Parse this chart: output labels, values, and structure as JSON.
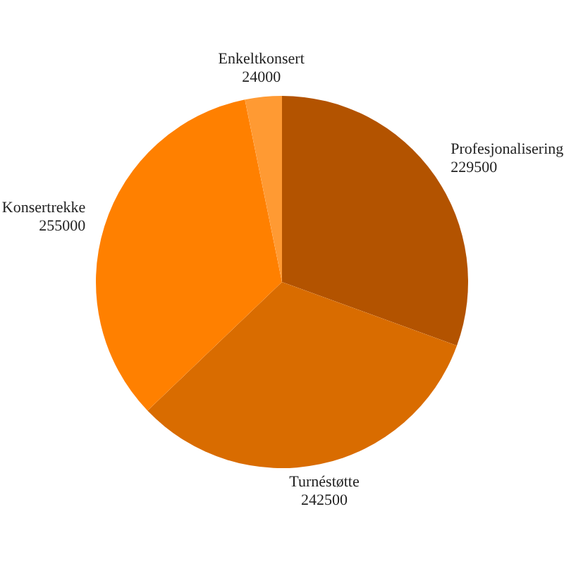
{
  "chart_data": {
    "type": "pie",
    "categories": [
      "Profesjonalisering",
      "Turnéstøtte",
      "Konsertrekke",
      "Enkeltkonsert"
    ],
    "values": [
      229500,
      242500,
      255000,
      24000
    ],
    "colors": [
      "#b35300",
      "#d96c00",
      "#ff8000",
      "#ff9a33"
    ],
    "data_labels": true
  }
}
